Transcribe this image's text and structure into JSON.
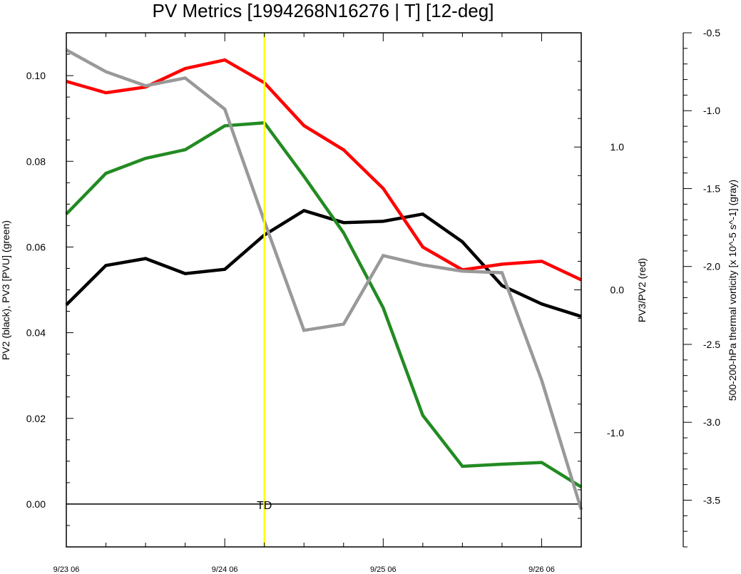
{
  "chart_data": {
    "type": "line",
    "title": "PV Metrics [1994268N16276 | T] [12-deg]",
    "ylabel_left": "PV2 (black), PV3 [PVU] (green)",
    "ylabel_right": "PV3/PV2 (red)",
    "ylabel_far_right": "500-200-hPa thermal vorticity [x 10^-5 s^-1] (gray)",
    "x_ticks": [
      "9/23 06",
      "9/24 06",
      "9/25 06",
      "9/26 06"
    ],
    "x_tick_hours": [
      0,
      24,
      48,
      72
    ],
    "xlim": [
      0,
      78
    ],
    "left_axis": {
      "ylim": [
        -0.01,
        0.11
      ],
      "ticks": [
        0.0,
        0.02,
        0.04,
        0.06,
        0.08,
        0.1
      ],
      "tick_labels": [
        "0.00",
        "0.02",
        "0.04",
        "0.06",
        "0.08",
        "0.10"
      ]
    },
    "right_axis": {
      "ylim": [
        -1.8,
        1.8
      ],
      "ticks": [
        -1.0,
        0.0,
        1.0
      ],
      "tick_labels": [
        "-1.0",
        "0.0",
        "1.0"
      ]
    },
    "far_right_axis": {
      "ylim": [
        -3.8,
        -0.5
      ],
      "ticks": [
        -3.5,
        -3.0,
        -2.5,
        -2.0,
        -1.5,
        -1.0,
        -0.5
      ],
      "tick_labels": [
        "-3.5",
        "-3.0",
        "-2.5",
        "-2.0",
        "-1.5",
        "-1.0",
        "-0.5"
      ]
    },
    "x": [
      0,
      6,
      12,
      18,
      24,
      30,
      36,
      42,
      48,
      54,
      60,
      66,
      72,
      78
    ],
    "series": [
      {
        "color": "#000000",
        "axis": "left",
        "values": [
          0.0465,
          0.0557,
          0.0573,
          0.0538,
          0.0548,
          0.0628,
          0.0685,
          0.0657,
          0.066,
          0.0677,
          0.0612,
          0.051,
          0.0467,
          0.0438
        ]
      },
      {
        "color": "#228B22",
        "axis": "left",
        "values": [
          0.0677,
          0.0772,
          0.0807,
          0.0827,
          0.0883,
          0.089,
          0.0765,
          0.0633,
          0.0458,
          0.0207,
          0.0088,
          0.0093,
          0.0097,
          0.004
        ]
      },
      {
        "color": "#ff0000",
        "axis": "right",
        "values": [
          1.46,
          1.38,
          1.42,
          1.55,
          1.61,
          1.45,
          1.15,
          0.98,
          0.71,
          0.3,
          0.14,
          0.18,
          0.2,
          0.07
        ]
      },
      {
        "color": "#999999",
        "axis": "far_right",
        "values": [
          -0.61,
          -0.75,
          -0.84,
          -0.79,
          -0.99,
          -1.71,
          -2.41,
          -2.37,
          -1.93,
          -1.99,
          -2.03,
          -2.04,
          -2.73,
          -3.56
        ]
      }
    ],
    "vline": {
      "x": 30,
      "color": "#ffff00"
    },
    "annotation": {
      "text": "TD",
      "x": 30,
      "y": 0.0
    },
    "zero_line": 0.0
  }
}
